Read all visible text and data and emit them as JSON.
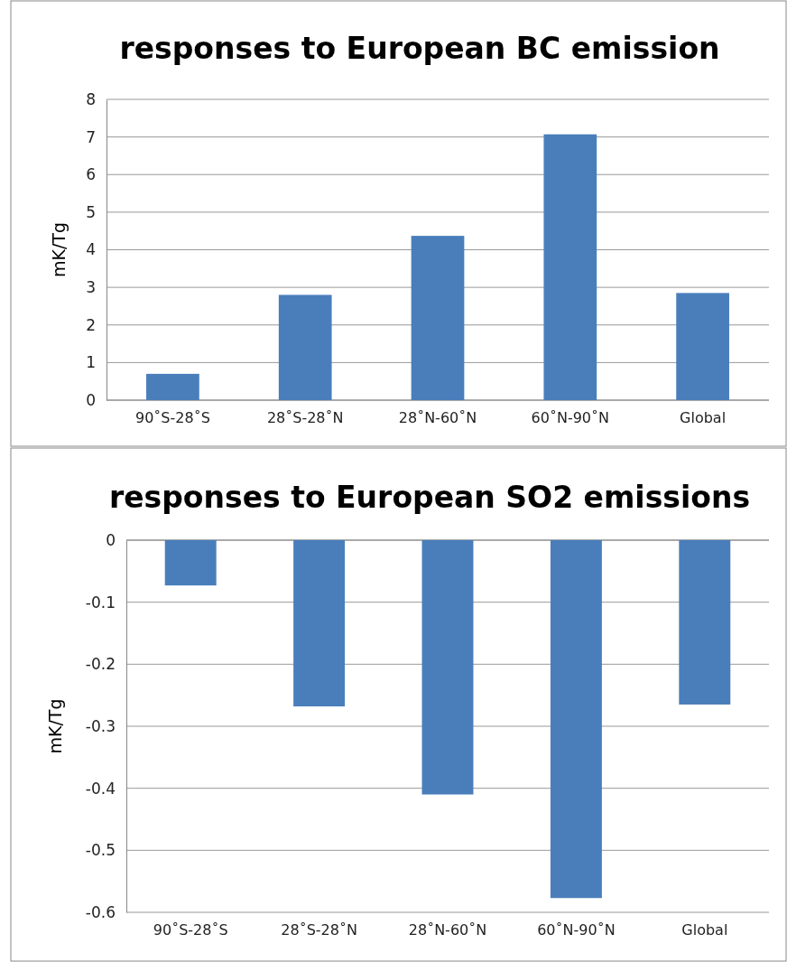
{
  "chart_data": [
    {
      "type": "bar",
      "title": "responses to European BC emission",
      "ylabel": "mK/Tg",
      "categories": [
        "90˚S-28˚S",
        "28˚S-28˚N",
        "28˚N-60˚N",
        "60˚N-90˚N",
        "Global"
      ],
      "values": [
        0.7,
        2.8,
        4.37,
        7.07,
        2.85
      ],
      "color": "#4a7ebb",
      "ylim": [
        0,
        8
      ],
      "yticks": [
        0,
        1,
        2,
        3,
        4,
        5,
        6,
        7,
        8
      ],
      "grid": "y"
    },
    {
      "type": "bar",
      "title": "responses to European SO2 emissions",
      "ylabel": "mK/Tg",
      "categories": [
        "90˚S-28˚S",
        "28˚S-28˚N",
        "28˚N-60˚N",
        "60˚N-90˚N",
        "Global"
      ],
      "values": [
        -0.073,
        -0.268,
        -0.41,
        -0.577,
        -0.265
      ],
      "color": "#4a7ebb",
      "ylim": [
        -0.6,
        0
      ],
      "yticks": [
        -0.6,
        -0.5,
        -0.4,
        -0.3,
        -0.2,
        -0.1,
        0
      ],
      "grid": "y"
    }
  ]
}
